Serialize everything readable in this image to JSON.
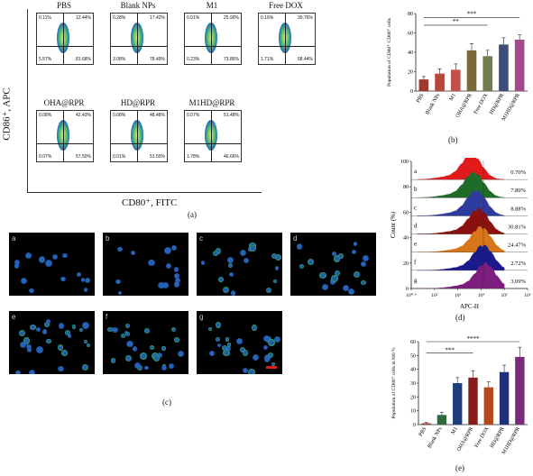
{
  "panel_a": {
    "label": "(a)",
    "ylabel": "CD86⁺, APC",
    "xlabel": "CD80⁺, FITC",
    "plots": [
      {
        "title": "PBS",
        "ul": "0.11%",
        "ur": "12.44%",
        "ll": "5.57%",
        "lr": "81.68%"
      },
      {
        "title": "Blank NPs",
        "ul": "0.28%",
        "ur": "17.42%",
        "ll": "3.08%",
        "lr": "78.49%"
      },
      {
        "title": "M1",
        "ul": "0.01%",
        "ur": "25.90%",
        "ll": "0.23%",
        "lr": "73.86%"
      },
      {
        "title": "Free DOX",
        "ul": "0.16%",
        "ur": "39.76%",
        "ll": "1.71%",
        "lr": "58.44%"
      },
      {
        "title": "OHA@RPR",
        "ul": "0.08%",
        "ur": "42.43%",
        "ll": "0.07%",
        "lr": "57.50%"
      },
      {
        "title": "HD@RPR",
        "ul": "0.08%",
        "ur": "48.48%",
        "ll": "0.01%",
        "lr": "51.50%"
      },
      {
        "title": "M1HD@RPR",
        "ul": "0.07%",
        "ur": "51.48%",
        "ll": "1.78%",
        "lr": "46.66%"
      }
    ]
  },
  "panel_b": {
    "label": "(b)"
  },
  "panel_c": {
    "label": "(c)",
    "tiles": [
      "a",
      "b",
      "c",
      "d",
      "e",
      "f",
      "g"
    ]
  },
  "panel_d": {
    "label": "(d)"
  },
  "panel_e": {
    "label": "(e)"
  },
  "chart_data": [
    {
      "type": "bar",
      "panel": "b",
      "categories": [
        "PBS",
        "Blank NPs",
        "M1",
        "OHA@RPR",
        "Free DOX",
        "HD@RPR",
        "M1HD@RPR"
      ],
      "values": [
        12,
        18,
        22,
        42,
        36,
        48,
        53
      ],
      "errors": [
        3,
        5,
        6,
        7,
        6,
        7,
        5
      ],
      "ylabel": "Population of CD80⁺ CD86⁺ cells",
      "ylim": [
        0,
        80
      ],
      "yticks": [
        0,
        20,
        40,
        60,
        80
      ],
      "significance": [
        "**",
        "***"
      ],
      "colors": [
        "#9e3b2e",
        "#b6473a",
        "#c0504d",
        "#7a6a3a",
        "#6e7d4a",
        "#3d4e7a",
        "#a44a8a"
      ]
    },
    {
      "type": "histogram",
      "panel": "d",
      "xlabel": "APC-H",
      "ylabel": "Count (%)",
      "ylim": [
        0,
        100
      ],
      "yticks": [
        0,
        20,
        40,
        60,
        80,
        100
      ],
      "xticks": [
        "10⁰·⁴",
        "10²",
        "10³",
        "10⁴",
        "10⁵",
        "10⁶"
      ],
      "series": [
        {
          "name": "a",
          "value": "0.70%",
          "color": "#e11b1b"
        },
        {
          "name": "b",
          "value": "7.80%",
          "color": "#1f6b2a"
        },
        {
          "name": "c",
          "value": "8.88%",
          "color": "#2e3c9e"
        },
        {
          "name": "d",
          "value": "30.81%",
          "color": "#8b1010"
        },
        {
          "name": "e",
          "value": "24.47%",
          "color": "#d8771a"
        },
        {
          "name": "f",
          "value": "2.72%",
          "color": "#1a1a8a"
        },
        {
          "name": "g",
          "value": "3.09%",
          "color": "#7d1d7d"
        }
      ]
    },
    {
      "type": "bar",
      "panel": "e",
      "categories": [
        "PBS",
        "Blank NPs",
        "M1",
        "OHA@RPR",
        "Free DOX",
        "HD@RPR",
        "M1HD@RPR"
      ],
      "values": [
        1,
        7,
        30,
        34,
        27,
        38,
        49
      ],
      "errors": [
        0.5,
        2,
        4,
        5,
        4,
        5,
        7
      ],
      "ylabel": "Population of CD86⁺ cells in M0 %",
      "ylim": [
        0,
        60
      ],
      "yticks": [
        0,
        10,
        20,
        30,
        40,
        50,
        60
      ],
      "significance": [
        "***",
        "****"
      ],
      "colors": [
        "#9e3b2e",
        "#2e6a3e",
        "#1f3f7a",
        "#8b1a1a",
        "#b3471d",
        "#1f2f7a",
        "#7a2a7a"
      ]
    }
  ]
}
